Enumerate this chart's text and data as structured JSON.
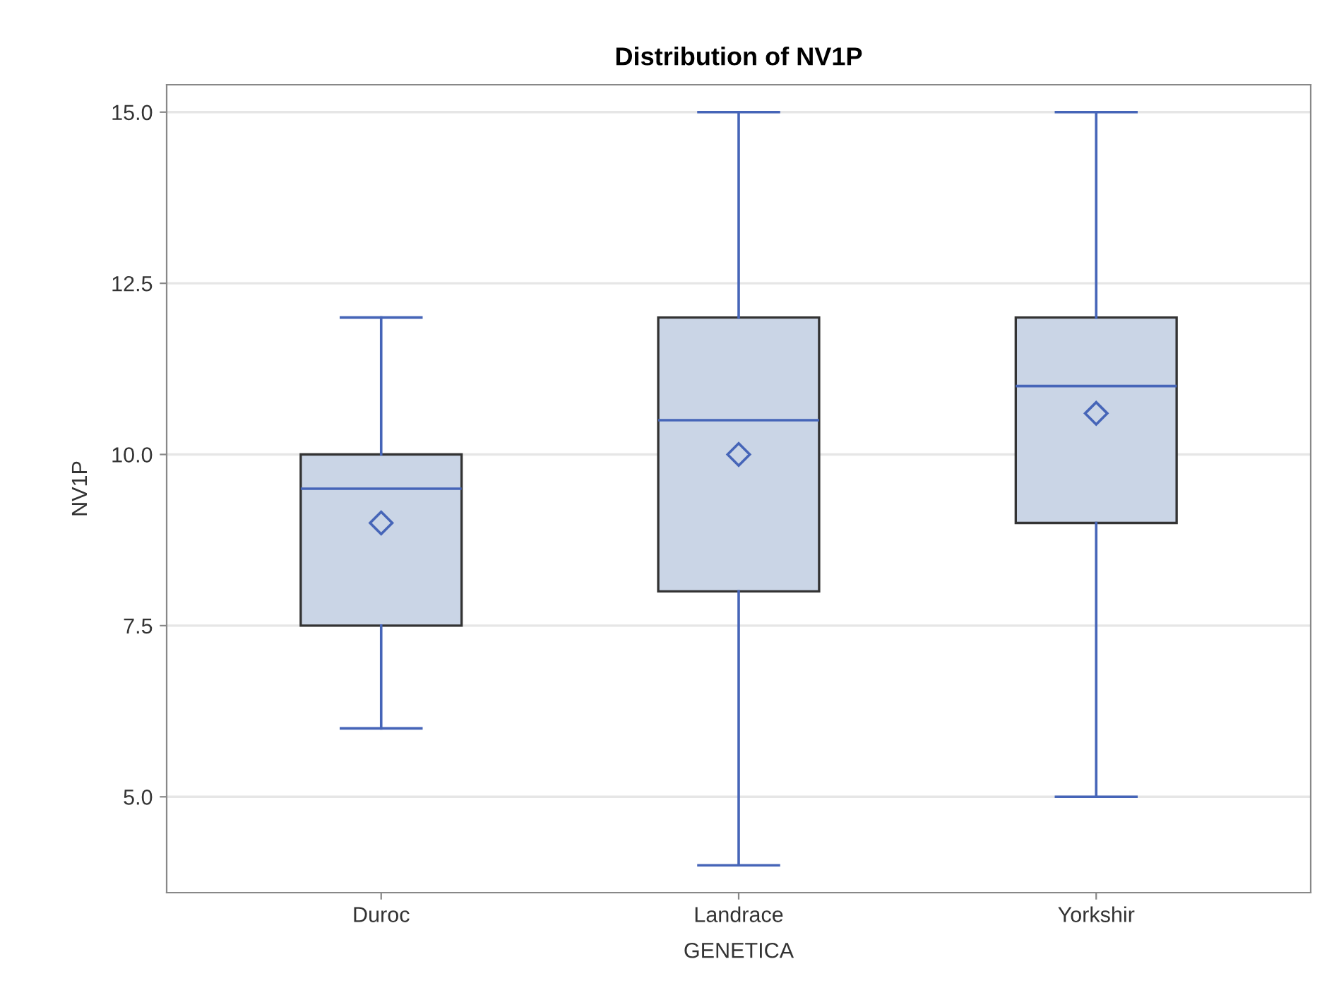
{
  "chart_data": {
    "type": "box",
    "title": "Distribution of NV1P",
    "xlabel": "GENETICA",
    "ylabel": "NV1P",
    "categories": [
      "Duroc",
      "Landrace",
      "Yorkshir"
    ],
    "boxes": [
      {
        "low": 6,
        "q1": 7.5,
        "median": 9.5,
        "q3": 10,
        "high": 12,
        "mean": 9.0
      },
      {
        "low": 4,
        "q1": 8,
        "median": 10.5,
        "q3": 12,
        "high": 15,
        "mean": 10.0
      },
      {
        "low": 5,
        "q1": 9,
        "median": 11,
        "q3": 12,
        "high": 15,
        "mean": 10.6
      }
    ],
    "color": "#cad5e6",
    "marker": "diamond",
    "ylim": [
      3.6,
      15.4
    ],
    "yticks": [
      {
        "value": 5,
        "label": "5.0"
      },
      {
        "value": 7.5,
        "label": "7.5"
      },
      {
        "value": 10,
        "label": "10.0"
      },
      {
        "value": 12.5,
        "label": "12.5"
      },
      {
        "value": 15,
        "label": "15.0"
      }
    ],
    "grid": "y"
  }
}
